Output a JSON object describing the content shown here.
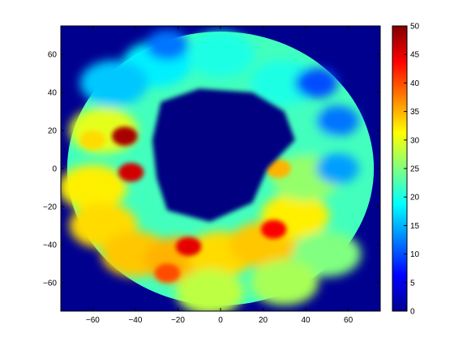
{
  "chart_data": {
    "type": "heatmap",
    "title": "",
    "xlabel": "",
    "ylabel": "",
    "xlim": [
      -75,
      75
    ],
    "ylim": [
      -75,
      75
    ],
    "x_ticks": [
      -60,
      -40,
      -20,
      0,
      20,
      40,
      60
    ],
    "y_ticks": [
      60,
      40,
      20,
      0,
      -20,
      -40,
      -60
    ],
    "colorbar": {
      "range": [
        0,
        50
      ],
      "ticks": [
        0,
        5,
        10,
        15,
        20,
        25,
        30,
        35,
        40,
        45,
        50
      ],
      "colormap": "jet"
    },
    "disk_radius": 72,
    "center_low_region": {
      "description_free_value": 0
    },
    "hotspots": [
      {
        "x": -45,
        "y": 17,
        "value": 48
      },
      {
        "x": -42,
        "y": -2,
        "value": 46
      },
      {
        "x": -15,
        "y": -41,
        "value": 45
      },
      {
        "x": 25,
        "y": -32,
        "value": 44
      },
      {
        "x": -25,
        "y": -55,
        "value": 40
      },
      {
        "x": 27,
        "y": 0,
        "value": 35
      },
      {
        "x": -60,
        "y": 15,
        "value": 33
      }
    ],
    "grid": false
  },
  "colors": {
    "background_low": "#00008f",
    "axes_frame": "#000000"
  }
}
